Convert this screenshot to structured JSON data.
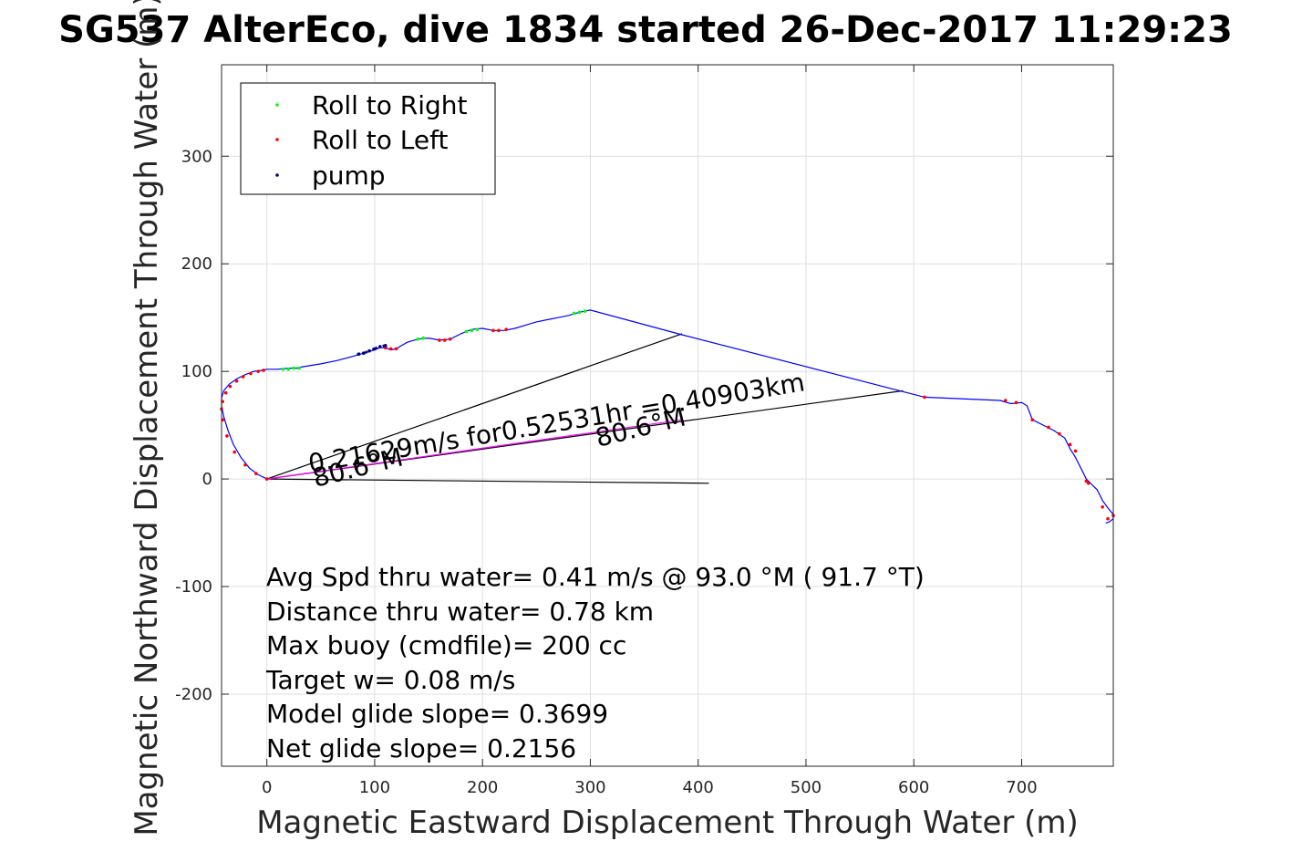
{
  "chart_data": {
    "type": "line",
    "title": "SG537 AlterEco, dive 1834 started 26-Dec-2017 11:29:23",
    "xlabel": "Magnetic Eastward Displacement Through Water (m)",
    "ylabel": "Magnetic Northward Displacement Through Water (m)",
    "xlim": [
      -42,
      785
    ],
    "ylim": [
      -267,
      385
    ],
    "xticks": [
      0,
      100,
      200,
      300,
      400,
      500,
      600,
      700
    ],
    "yticks": [
      -200,
      -100,
      0,
      100,
      200,
      300
    ],
    "grid": true,
    "legend": {
      "placement": "top-left",
      "entries": [
        {
          "label": "Roll to Right",
          "color": "#00ff00"
        },
        {
          "label": "Roll to Left",
          "color": "#ff0000"
        },
        {
          "label": "pump",
          "color": "#000080"
        }
      ]
    },
    "track": {
      "name": "track",
      "color": "#0000ff",
      "x": [
        0,
        -8,
        -16,
        -24,
        -31,
        -36,
        -40,
        -42,
        -42,
        -40,
        -35,
        -28,
        -20,
        -12,
        -4,
        0,
        10,
        20,
        28,
        32,
        50,
        65,
        80,
        90,
        100,
        105,
        110,
        115,
        120,
        125,
        130,
        140,
        150,
        160,
        170,
        180,
        190,
        200,
        210,
        220,
        230,
        240,
        250,
        260,
        270,
        280,
        290,
        300,
        385,
        610,
        680,
        690,
        700,
        705,
        710,
        720,
        730,
        740,
        745,
        750,
        755,
        760,
        765,
        770,
        775,
        780,
        785,
        785,
        781,
        778
      ],
      "y": [
        0,
        4,
        10,
        20,
        32,
        45,
        58,
        68,
        75,
        82,
        88,
        93,
        97,
        100,
        101,
        102,
        102,
        103,
        103,
        104,
        107,
        110,
        114,
        117,
        120,
        122,
        122,
        120,
        121,
        124,
        127,
        130,
        131,
        129,
        130,
        135,
        139,
        140,
        138,
        138,
        140,
        143,
        146,
        148,
        150,
        152,
        155,
        157,
        134,
        76,
        73,
        70,
        71,
        68,
        55,
        50,
        45,
        38,
        28,
        20,
        10,
        0,
        -5,
        -10,
        -20,
        -27,
        -33,
        -37,
        -40,
        -41
      ]
    },
    "pump_track": {
      "name": "pump",
      "color": "#000080",
      "x": [
        85,
        90,
        95,
        100,
        105,
        110
      ],
      "y": [
        116,
        117,
        119,
        121,
        123,
        124
      ]
    },
    "roll_right": {
      "name": "Roll to Right",
      "color": "#00ff00",
      "x": [
        15,
        20,
        25,
        30,
        140,
        145,
        185,
        190,
        195,
        285,
        290,
        295
      ],
      "y": [
        102,
        102,
        103,
        103,
        130,
        131,
        137,
        138,
        139,
        154,
        155,
        156
      ]
    },
    "roll_left": {
      "name": "Roll to Left",
      "color": "#ff0000",
      "x": [
        0,
        -10,
        -20,
        -30,
        -37,
        -41,
        -42,
        -41,
        -38,
        -34,
        -28,
        -22,
        -15,
        -8,
        -3,
        110,
        115,
        120,
        160,
        165,
        170,
        210,
        215,
        222,
        610,
        685,
        695,
        710,
        725,
        735,
        745,
        750,
        760,
        762,
        775,
        780,
        785
      ],
      "y": [
        0,
        5,
        13,
        25,
        40,
        55,
        65,
        72,
        80,
        86,
        91,
        95,
        98,
        100,
        101,
        122,
        121,
        121,
        129,
        129,
        130,
        138,
        138,
        139,
        76,
        73,
        71,
        55,
        48,
        42,
        32,
        26,
        -2,
        -4,
        -26,
        -37,
        -34
      ]
    },
    "reference_lines": [
      {
        "name": "heading-line-upper",
        "color": "#000000",
        "x": [
          0,
          385
        ],
        "y": [
          0,
          135
        ]
      },
      {
        "name": "heading-line-mid",
        "color": "#000000",
        "x": [
          0,
          590
        ],
        "y": [
          0,
          82
        ]
      },
      {
        "name": "heading-line-lower",
        "color": "#000000",
        "x": [
          0,
          410
        ],
        "y": [
          0,
          -4
        ]
      },
      {
        "name": "net-displacement",
        "color": "#ff00ff",
        "x": [
          0,
          385
        ],
        "y": [
          0,
          55
        ]
      }
    ],
    "annotations": {
      "speed": "0.21629m/s for0.52531hr =0.40903km",
      "heading_near": "80.6°M",
      "heading_far": "80.6°M"
    },
    "stats": [
      "Avg Spd thru water=  0.41 m/s @  93.0 °M ( 91.7 °T)",
      "Distance thru water=  0.78 km",
      "Max buoy (cmdfile)= 200 cc",
      "Target w= 0.08 m/s",
      "Model glide slope= 0.3699",
      "Net glide slope= 0.2156"
    ]
  }
}
